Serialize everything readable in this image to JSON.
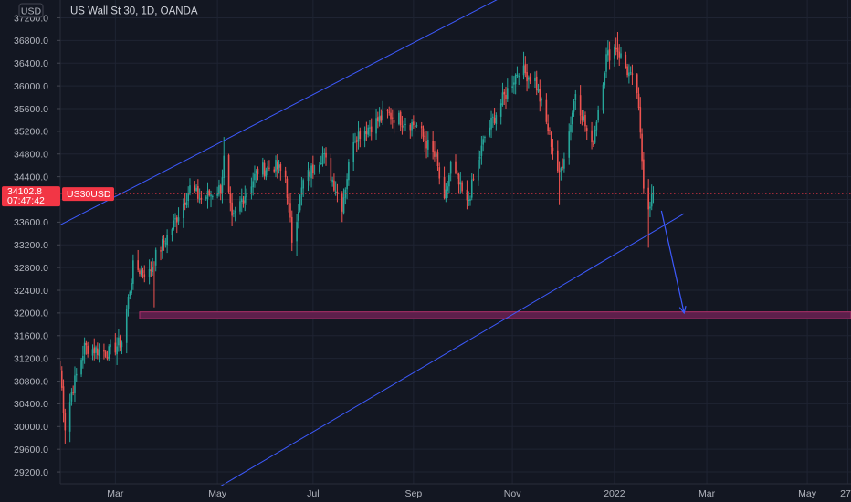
{
  "chart_data": {
    "type": "candlestick",
    "title": "US Wall St 30, 1D, OANDA",
    "currency_button": "USD",
    "symbol_tag": "US30USD",
    "last_price_label": "34102.8",
    "countdown_label": "07:47:42",
    "last_price": 34102.8,
    "ylim": [
      29000,
      37500
    ],
    "y_ticks": [
      29200,
      29600,
      30000,
      30400,
      30800,
      31200,
      31600,
      32000,
      32400,
      32800,
      33200,
      33600,
      34000,
      34400,
      34800,
      35200,
      35600,
      36000,
      36400,
      36800,
      37200
    ],
    "y_tick_labels": [
      "29200.0",
      "29600.0",
      "30000.0",
      "30400.0",
      "30800.0",
      "31200.0",
      "31600.0",
      "32000.0",
      "32400.0",
      "32800.0",
      "33200.0",
      "33600.0",
      "34000.0",
      "34400.0",
      "34800.0",
      "35200.0",
      "35600.0",
      "36000.0",
      "36400.0",
      "36800.0",
      "37200.0"
    ],
    "x_start": "2021-01-26",
    "x_end": "2022-05-29",
    "x_ticks": [
      {
        "date": "2021-03-01",
        "label": "Mar"
      },
      {
        "date": "2021-05-03",
        "label": "May"
      },
      {
        "date": "2021-07-01",
        "label": "Jul"
      },
      {
        "date": "2021-09-01",
        "label": "Sep"
      },
      {
        "date": "2021-11-01",
        "label": "Nov"
      },
      {
        "date": "2022-01-03",
        "label": "2022"
      },
      {
        "date": "2022-03-01",
        "label": "Mar"
      },
      {
        "date": "2022-05-02",
        "label": "May"
      },
      {
        "date": "2022-05-27",
        "label": "27"
      }
    ],
    "anchors": [
      [
        "2021-01-26",
        31000
      ],
      [
        "2021-01-29",
        30000
      ],
      [
        "2021-02-02",
        30600
      ],
      [
        "2021-02-10",
        31400
      ],
      [
        "2021-02-25",
        31300
      ],
      [
        "2021-03-05",
        31500
      ],
      [
        "2021-03-12",
        32800
      ],
      [
        "2021-03-22",
        32700
      ],
      [
        "2021-03-26",
        33000
      ],
      [
        "2021-04-05",
        33500
      ],
      [
        "2021-04-16",
        34200
      ],
      [
        "2021-04-23",
        34000
      ],
      [
        "2021-05-05",
        34200
      ],
      [
        "2021-05-07",
        34700
      ],
      [
        "2021-05-12",
        33600
      ],
      [
        "2021-05-18",
        34000
      ],
      [
        "2021-05-28",
        34500
      ],
      [
        "2021-06-07",
        34600
      ],
      [
        "2021-06-14",
        34400
      ],
      [
        "2021-06-18",
        33300
      ],
      [
        "2021-06-25",
        34300
      ],
      [
        "2021-07-07",
        34800
      ],
      [
        "2021-07-19",
        33900
      ],
      [
        "2021-07-26",
        35100
      ],
      [
        "2021-08-16",
        35500
      ],
      [
        "2021-08-25",
        35400
      ],
      [
        "2021-09-03",
        35300
      ],
      [
        "2021-09-15",
        34700
      ],
      [
        "2021-09-20",
        33900
      ],
      [
        "2021-09-24",
        34600
      ],
      [
        "2021-10-04",
        33900
      ],
      [
        "2021-10-15",
        35100
      ],
      [
        "2021-10-25",
        35700
      ],
      [
        "2021-11-05",
        36300
      ],
      [
        "2021-11-15",
        36100
      ],
      [
        "2021-11-26",
        34900
      ],
      [
        "2021-11-30",
        34400
      ],
      [
        "2021-12-06",
        35200
      ],
      [
        "2021-12-10",
        35900
      ],
      [
        "2021-12-20",
        34900
      ],
      [
        "2021-12-29",
        36500
      ],
      [
        "2022-01-04",
        36700
      ],
      [
        "2022-01-12",
        36200
      ],
      [
        "2022-01-17",
        35900
      ],
      [
        "2022-01-21",
        34300
      ],
      [
        "2022-01-24",
        33900
      ],
      [
        "2022-01-27",
        34100
      ]
    ],
    "extremes": [
      {
        "date": "2021-01-29",
        "value": 29700
      },
      {
        "date": "2021-03-25",
        "value": 32100
      },
      {
        "date": "2021-05-07",
        "value": 35100
      },
      {
        "date": "2021-06-21",
        "value": 33000
      },
      {
        "date": "2021-08-16",
        "value": 35600
      },
      {
        "date": "2021-11-08",
        "value": 36600
      },
      {
        "date": "2021-11-30",
        "value": 33900
      },
      {
        "date": "2022-01-05",
        "value": 36950
      },
      {
        "date": "2022-01-24",
        "value": 33150
      }
    ],
    "trend_lines": [
      {
        "name": "channel-upper",
        "p1": {
          "date": "2021-01-26",
          "value": 33550
        },
        "p2": {
          "date": "2021-12-01",
          "value": 38100
        }
      },
      {
        "name": "channel-lower",
        "p1": {
          "date": "2021-05-05",
          "value": 28950
        },
        "p2": {
          "date": "2022-02-15",
          "value": 33750
        }
      }
    ],
    "target_arrow": {
      "from": {
        "date": "2022-02-01",
        "value": 33800
      },
      "to": {
        "date": "2022-02-15",
        "value": 32000
      }
    },
    "support_zone": {
      "from_date": "2021-03-16",
      "low": 31900,
      "high": 32020
    },
    "colors": {
      "background": "#131722",
      "grid": "#1f2433",
      "axis_text": "#b2b5be",
      "bull": "#26a69a",
      "bear": "#ef5350",
      "trend_line": "#3d5afe",
      "zone_fill": "#5d1f4b",
      "zone_border": "#b0306a",
      "price_tag": "#f23645"
    },
    "grid": true
  }
}
